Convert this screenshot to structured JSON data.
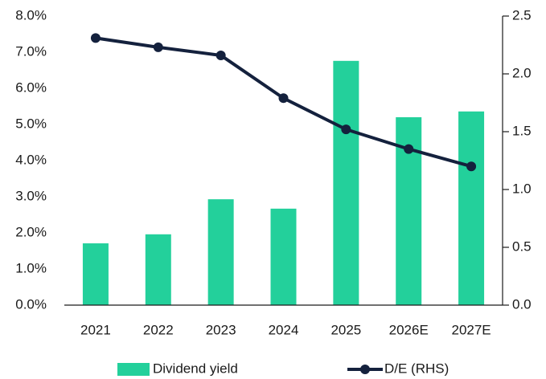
{
  "chart_data": {
    "type": "bar",
    "categories": [
      "2021",
      "2022",
      "2023",
      "2024",
      "2025",
      "2026E",
      "2027E"
    ],
    "series": [
      {
        "name": "Dividend yield",
        "type": "bar",
        "color": "#23d09b",
        "values": [
          1.71,
          1.96,
          2.93,
          2.67,
          6.76,
          5.2,
          5.36
        ]
      },
      {
        "name": "D/E (RHS)",
        "type": "line",
        "axis": "y2",
        "color": "#14213d",
        "values": [
          2.31,
          2.23,
          2.16,
          1.79,
          1.52,
          1.35,
          1.2
        ]
      }
    ],
    "ylim": [
      0,
      8
    ],
    "yticks": [
      {
        "value": 0,
        "label": "0.0%"
      },
      {
        "value": 1,
        "label": "1.0%"
      },
      {
        "value": 2,
        "label": "2.0%"
      },
      {
        "value": 3,
        "label": "3.0%"
      },
      {
        "value": 4,
        "label": "4.0%"
      },
      {
        "value": 5,
        "label": "5.0%"
      },
      {
        "value": 6,
        "label": "6.0%"
      },
      {
        "value": 7,
        "label": "7.0%"
      },
      {
        "value": 8,
        "label": "8.0%"
      }
    ],
    "y2lim": [
      0,
      2.5
    ],
    "y2ticks": [
      {
        "value": 0,
        "label": "0.0"
      },
      0.5,
      {
        "value": 1,
        "label": "1.0"
      },
      1.5,
      {
        "value": 2,
        "label": "2.0"
      },
      2.5
    ],
    "legend": "bottom"
  }
}
